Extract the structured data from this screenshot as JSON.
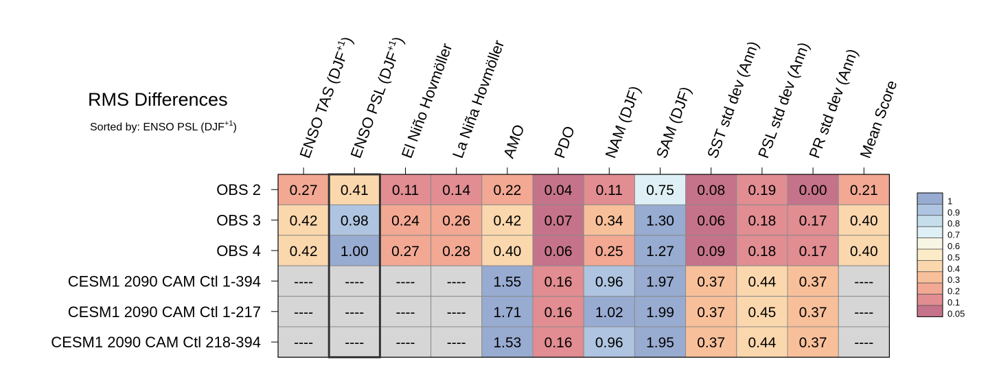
{
  "chart_data": {
    "type": "heatmap",
    "title": "RMS Differences",
    "subtitle_prefix": "Sorted by: ENSO PSL (DJF",
    "subtitle_sup": "+1",
    "subtitle_suffix": ")",
    "columns": [
      {
        "label": "ENSO TAS (DJF",
        "sup": "+1",
        "suffix": ")"
      },
      {
        "label": "ENSO PSL (DJF",
        "sup": "+1",
        "suffix": ")"
      },
      {
        "label": "El Niño Hovmöller"
      },
      {
        "label": "La Niña Hovmöller"
      },
      {
        "label": "AMO"
      },
      {
        "label": "PDO"
      },
      {
        "label": "NAM (DJF)"
      },
      {
        "label": "SAM (DJF)"
      },
      {
        "label": "SST std dev (Ann)"
      },
      {
        "label": "PSL std dev (Ann)"
      },
      {
        "label": "PR std dev (Ann)"
      },
      {
        "label": "Mean Score"
      }
    ],
    "rows": [
      {
        "label": "OBS 2",
        "values": [
          0.27,
          0.41,
          0.11,
          0.14,
          0.22,
          0.04,
          0.11,
          0.75,
          0.08,
          0.19,
          0.0,
          0.21
        ]
      },
      {
        "label": "OBS 3",
        "values": [
          0.42,
          0.98,
          0.24,
          0.26,
          0.42,
          0.07,
          0.34,
          1.3,
          0.06,
          0.18,
          0.17,
          0.4
        ]
      },
      {
        "label": "OBS 4",
        "values": [
          0.42,
          1.0,
          0.27,
          0.28,
          0.4,
          0.06,
          0.25,
          1.27,
          0.09,
          0.18,
          0.17,
          0.4
        ]
      },
      {
        "label": "CESM1 2090 CAM Ctl 1-394",
        "values": [
          null,
          null,
          null,
          null,
          1.55,
          0.16,
          0.96,
          1.97,
          0.37,
          0.44,
          0.37,
          null
        ]
      },
      {
        "label": "CESM1 2090 CAM Ctl 1-217",
        "values": [
          null,
          null,
          null,
          null,
          1.71,
          0.16,
          1.02,
          1.99,
          0.37,
          0.45,
          0.37,
          null
        ]
      },
      {
        "label": "CESM1 2090 CAM Ctl 218-394",
        "values": [
          null,
          null,
          null,
          null,
          1.53,
          0.16,
          0.96,
          1.95,
          0.37,
          0.44,
          0.37,
          null
        ]
      }
    ],
    "missing_text": "----",
    "highlighted_column": 1,
    "legend": {
      "labels": [
        "1",
        "0.9",
        "0.8",
        "0.7",
        "0.6",
        "0.5",
        "0.4",
        "0.3",
        "0.2",
        "0.1",
        "0.05"
      ],
      "colors": [
        "#98abd1",
        "#afc4e0",
        "#c6deec",
        "#def0f5",
        "#f7f5e3",
        "#fcebc7",
        "#fbd7ad",
        "#f8c09a",
        "#f2a893",
        "#e18d92",
        "#c5738a"
      ]
    },
    "missing_color": "#d6d6d6"
  }
}
